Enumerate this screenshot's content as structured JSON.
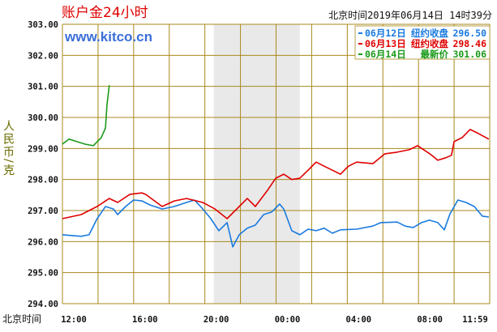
{
  "header": {
    "title": "账户金24小时",
    "site": "www.kitco.cn",
    "timestamp": "北京时间2019年06月14日 14时39分"
  },
  "legend": [
    {
      "date": "06月12日",
      "label": "纽约收盘",
      "value": "296.50",
      "color": "#1a7ae0"
    },
    {
      "date": "06月13日",
      "label": "纽约收盘",
      "value": "298.46",
      "color": "#e00000"
    },
    {
      "date": "06月14日",
      "label": "最新价",
      "value": "301.06",
      "color": "#1a9a1a"
    }
  ],
  "chart_data": {
    "type": "line",
    "title": "账户金24小时",
    "ylabel": "人民币/克",
    "xlabel_prefix": "北京时间",
    "ylim": [
      294,
      303
    ],
    "yticks": [
      "303.00",
      "302.00",
      "301.00",
      "300.00",
      "299.00",
      "298.00",
      "297.00",
      "296.00",
      "295.00",
      "294.00"
    ],
    "xticks": [
      "12:00",
      "16:00",
      "20:00",
      "00:00",
      "04:00",
      "08:00",
      "11:59"
    ],
    "x_range": [
      "12:00",
      "11:59"
    ],
    "grid": true,
    "legend_position": "top-right",
    "shaded_range": [
      "20:30",
      "01:20"
    ],
    "series": [
      {
        "name": "06月12日",
        "color": "#1a7ae0",
        "points": [
          [
            "12:00",
            296.22
          ],
          [
            "13:03",
            296.17
          ],
          [
            "13:30",
            296.22
          ],
          [
            "13:57",
            296.74
          ],
          [
            "14:25",
            297.13
          ],
          [
            "14:52",
            297.05
          ],
          [
            "15:06",
            296.87
          ],
          [
            "15:33",
            297.13
          ],
          [
            "16:00",
            297.34
          ],
          [
            "16:28",
            297.31
          ],
          [
            "16:55",
            297.18
          ],
          [
            "17:36",
            297.05
          ],
          [
            "18:17",
            297.13
          ],
          [
            "18:58",
            297.26
          ],
          [
            "19:25",
            297.34
          ],
          [
            "19:53",
            297.05
          ],
          [
            "20:20",
            296.74
          ],
          [
            "20:47",
            296.35
          ],
          [
            "21:15",
            296.61
          ],
          [
            "21:34",
            295.83
          ],
          [
            "21:56",
            296.22
          ],
          [
            "22:23",
            296.43
          ],
          [
            "22:50",
            296.53
          ],
          [
            "23:18",
            296.87
          ],
          [
            "23:45",
            296.95
          ],
          [
            "00:12",
            297.21
          ],
          [
            "00:26",
            297.05
          ],
          [
            "00:53",
            296.35
          ],
          [
            "01:20",
            296.22
          ],
          [
            "01:48",
            296.4
          ],
          [
            "02:15",
            296.35
          ],
          [
            "02:42",
            296.43
          ],
          [
            "03:10",
            296.27
          ],
          [
            "03:37",
            296.38
          ],
          [
            "04:32",
            296.4
          ],
          [
            "05:26",
            296.5
          ],
          [
            "05:53",
            296.61
          ],
          [
            "06:48",
            296.63
          ],
          [
            "07:15",
            296.5
          ],
          [
            "07:42",
            296.45
          ],
          [
            "08:10",
            296.61
          ],
          [
            "08:37",
            296.69
          ],
          [
            "09:05",
            296.61
          ],
          [
            "09:27",
            296.38
          ],
          [
            "09:46",
            296.89
          ],
          [
            "10:13",
            297.34
          ],
          [
            "10:40",
            297.26
          ],
          [
            "11:08",
            297.13
          ],
          [
            "11:35",
            296.82
          ],
          [
            "11:57",
            296.79
          ]
        ]
      },
      {
        "name": "06月13日",
        "color": "#e00000",
        "points": [
          [
            "12:00",
            296.74
          ],
          [
            "13:03",
            296.87
          ],
          [
            "13:57",
            297.13
          ],
          [
            "14:38",
            297.39
          ],
          [
            "15:06",
            297.26
          ],
          [
            "15:47",
            297.52
          ],
          [
            "16:28",
            297.57
          ],
          [
            "16:41",
            297.52
          ],
          [
            "17:36",
            297.13
          ],
          [
            "18:17",
            297.31
          ],
          [
            "18:58",
            297.39
          ],
          [
            "19:53",
            297.26
          ],
          [
            "20:34",
            297.05
          ],
          [
            "21:15",
            296.74
          ],
          [
            "21:56",
            297.13
          ],
          [
            "22:23",
            297.39
          ],
          [
            "22:50",
            297.13
          ],
          [
            "23:31",
            297.65
          ],
          [
            "23:59",
            298.04
          ],
          [
            "00:26",
            298.17
          ],
          [
            "00:53",
            298.0
          ],
          [
            "01:20",
            298.04
          ],
          [
            "01:48",
            298.3
          ],
          [
            "02:15",
            298.56
          ],
          [
            "02:42",
            298.43
          ],
          [
            "03:10",
            298.3
          ],
          [
            "03:37",
            298.17
          ],
          [
            "04:04",
            298.43
          ],
          [
            "04:32",
            298.56
          ],
          [
            "05:26",
            298.51
          ],
          [
            "06:07",
            298.83
          ],
          [
            "06:48",
            298.88
          ],
          [
            "07:29",
            298.96
          ],
          [
            "07:57",
            299.09
          ],
          [
            "08:38",
            298.83
          ],
          [
            "09:05",
            298.62
          ],
          [
            "09:32",
            298.7
          ],
          [
            "09:51",
            298.78
          ],
          [
            "10:00",
            299.22
          ],
          [
            "10:27",
            299.35
          ],
          [
            "10:54",
            299.61
          ],
          [
            "11:22",
            299.48
          ],
          [
            "11:57",
            299.3
          ]
        ]
      },
      {
        "name": "06月14日",
        "color": "#1a9a1a",
        "points": [
          [
            "12:00",
            299.14
          ],
          [
            "12:22",
            299.3
          ],
          [
            "12:49",
            299.22
          ],
          [
            "13:16",
            299.14
          ],
          [
            "13:44",
            299.09
          ],
          [
            "14:11",
            299.35
          ],
          [
            "14:25",
            299.66
          ],
          [
            "14:30",
            300.39
          ],
          [
            "14:38",
            301.04
          ]
        ]
      }
    ]
  },
  "colors": {
    "grid": "#a88a1c",
    "shade": "#e9e9e9"
  }
}
